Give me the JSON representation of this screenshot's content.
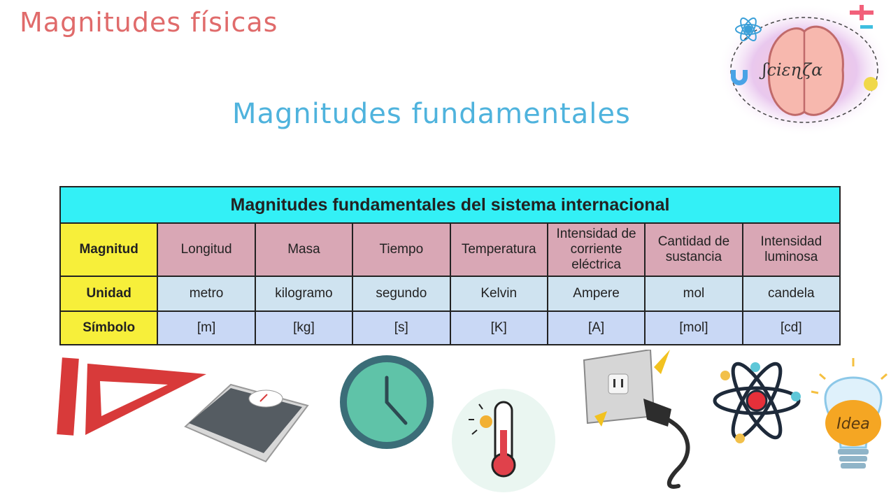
{
  "page": {
    "title": "Magnitudes físicas",
    "subtitle": "Magnitudes fundamentales"
  },
  "logo": {
    "text": "ʃciɛɳζα"
  },
  "table": {
    "header": "Magnitudes fundamentales del sistema internacional",
    "row_labels": [
      "Magnitud",
      "Unidad",
      "Símbolo"
    ],
    "magnitudes": [
      "Longitud",
      "Masa",
      "Tiempo",
      "Temperatura",
      "Intensidad de corriente eléctrica",
      "Cantidad de sustancia",
      "Intensidad luminosa"
    ],
    "unidades": [
      "metro",
      "kilogramo",
      "segundo",
      "Kelvin",
      "Ampere",
      "mol",
      "candela"
    ],
    "simbolos": [
      "[m]",
      "[kg]",
      "[s]",
      "[K]",
      "[A]",
      "[mol]",
      "[cd]"
    ]
  },
  "bulb_label": "Idea",
  "icons": [
    "ruler-icon",
    "scale-icon",
    "clock-icon",
    "thermometer-icon",
    "plug-icon",
    "atom-icon",
    "lightbulb-icon"
  ],
  "colors": {
    "header": "#33f0f6",
    "row_label": "#f7ef3a",
    "magnitud_row": "#d9a7b5",
    "unidad_row": "#cfe3f0",
    "simbolo_row": "#c9d8f5",
    "title": "#e06b6b",
    "subtitle": "#4fb3dd"
  }
}
